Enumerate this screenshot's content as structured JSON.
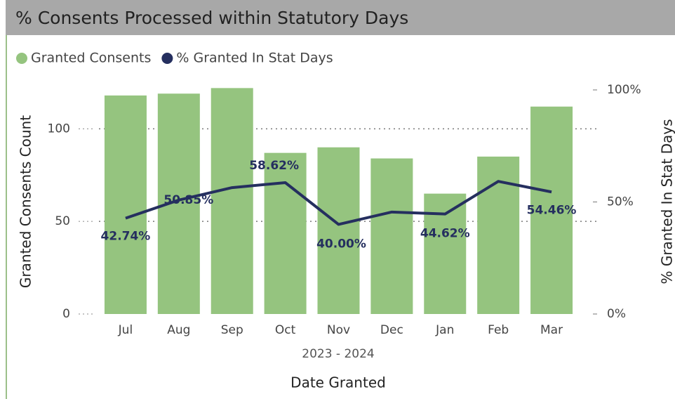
{
  "chart_data": {
    "type": "bar-line",
    "title": "% Consents Processed within Statutory Days",
    "x_label": "Date Granted",
    "x_sublabel": "2023 - 2024",
    "y_label": "Granted Consents Count",
    "y2_label": "% Granted In Stat Days",
    "categories": [
      "Jul",
      "Aug",
      "Sep",
      "Oct",
      "Nov",
      "Dec",
      "Jan",
      "Feb",
      "Mar"
    ],
    "series": [
      {
        "name": "Granted Consents",
        "color": "#95c47f",
        "type": "bar",
        "values": [
          118,
          119,
          122,
          87,
          90,
          84,
          65,
          85,
          112
        ]
      },
      {
        "name": "% Granted In Stat Days",
        "color": "#252f5f",
        "type": "line",
        "axis": "y2",
        "values": [
          42.74,
          50.85,
          56.4,
          58.62,
          40.0,
          45.5,
          44.62,
          59.2,
          54.46
        ],
        "value_labels": [
          "42.74%",
          "50.85%",
          null,
          "58.62%",
          "40.00%",
          null,
          "44.62%",
          null,
          "54.46%"
        ]
      }
    ],
    "ylim": [
      0,
      121
    ],
    "yticks": [
      0,
      50,
      100
    ],
    "y2lim": [
      0,
      100
    ],
    "y2ticks": [
      {
        "value": 0,
        "label": "0%"
      },
      {
        "value": 50,
        "label": "50%"
      },
      {
        "value": 100,
        "label": "100%"
      }
    ],
    "grid": true,
    "legend": "top-left"
  }
}
